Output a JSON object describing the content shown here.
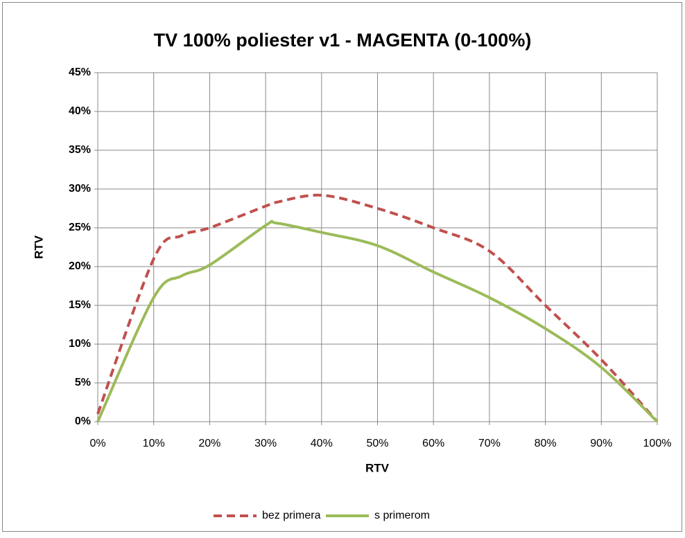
{
  "chart_data": {
    "type": "line",
    "title": "TV 100% poliester v1 - MAGENTA (0-100%)",
    "xlabel": "RTV",
    "ylabel": "RTV",
    "x": [
      0,
      10,
      15,
      20,
      30,
      32,
      40,
      50,
      60,
      70,
      80,
      90,
      100
    ],
    "series": [
      {
        "name": "bez primera",
        "color": "#c0504d",
        "dash": true,
        "values": [
          1,
          21,
          24,
          25,
          27.8,
          28.3,
          29.2,
          27.5,
          25,
          22,
          15,
          8,
          0
        ]
      },
      {
        "name": "s primerom",
        "color": "#9bbb59",
        "dash": false,
        "values": [
          0,
          16,
          18.8,
          20.2,
          25.3,
          25.6,
          24.4,
          22.7,
          19.3,
          16,
          12,
          7,
          0
        ]
      }
    ],
    "xlim": [
      0,
      100
    ],
    "xticks": [
      {
        "value": 0,
        "label": "0%"
      },
      {
        "value": 10,
        "label": "10%"
      },
      {
        "value": 20,
        "label": "20%"
      },
      {
        "value": 30,
        "label": "30%"
      },
      {
        "value": 40,
        "label": "40%"
      },
      {
        "value": 50,
        "label": "50%"
      },
      {
        "value": 60,
        "label": "60%"
      },
      {
        "value": 70,
        "label": "70%"
      },
      {
        "value": 80,
        "label": "80%"
      },
      {
        "value": 90,
        "label": "90%"
      },
      {
        "value": 100,
        "label": "100%"
      }
    ],
    "ylim": [
      0,
      45
    ],
    "yticks": [
      {
        "value": 0,
        "label": "0%"
      },
      {
        "value": 5,
        "label": "5%"
      },
      {
        "value": 10,
        "label": "10%"
      },
      {
        "value": 15,
        "label": "15%"
      },
      {
        "value": 20,
        "label": "20%"
      },
      {
        "value": 25,
        "label": "25%"
      },
      {
        "value": 30,
        "label": "30%"
      },
      {
        "value": 35,
        "label": "35%"
      },
      {
        "value": 40,
        "label": "40%"
      },
      {
        "value": 45,
        "label": "45%"
      }
    ],
    "grid": true,
    "legend": "bottom"
  }
}
